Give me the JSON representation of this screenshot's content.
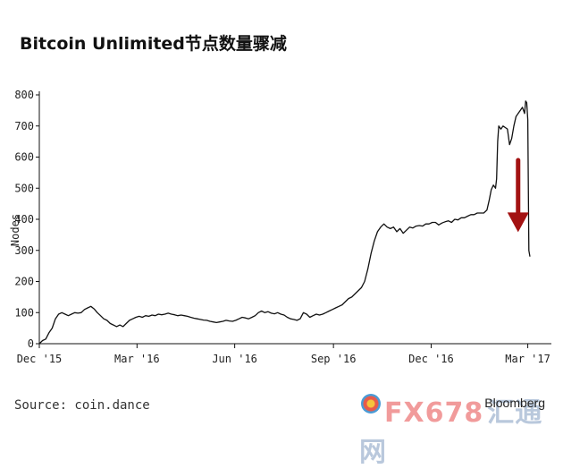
{
  "title": "Bitcoin Unlimited节点数量骤减",
  "source": "Source: coin.dance",
  "brand": "Bloomberg",
  "watermark": {
    "main": "FX678",
    "sub": "汇通网"
  },
  "chart_data": {
    "type": "line",
    "title": "Bitcoin Unlimited节点数量骤减",
    "xlabel": "",
    "ylabel": "Nodes",
    "ylim": [
      0,
      800
    ],
    "yticks": [
      0,
      100,
      200,
      300,
      400,
      500,
      600,
      700,
      800
    ],
    "xlim": [
      0,
      472
    ],
    "xticks": [
      {
        "pos": 0,
        "label": "Dec '15"
      },
      {
        "pos": 91,
        "label": "Mar '16"
      },
      {
        "pos": 182,
        "label": "Jun '16"
      },
      {
        "pos": 274,
        "label": "Sep '16"
      },
      {
        "pos": 365,
        "label": "Dec '16"
      },
      {
        "pos": 455,
        "label": "Mar '17"
      }
    ],
    "grid": false,
    "legend": "none",
    "annotation": {
      "type": "arrow",
      "color": "#a31212",
      "x_day": 446,
      "from_y": 590,
      "to_y": 370
    },
    "series": [
      {
        "color": "#111111",
        "points": [
          [
            0,
            0
          ],
          [
            3,
            10
          ],
          [
            6,
            15
          ],
          [
            9,
            35
          ],
          [
            12,
            50
          ],
          [
            15,
            80
          ],
          [
            18,
            95
          ],
          [
            21,
            100
          ],
          [
            24,
            95
          ],
          [
            27,
            90
          ],
          [
            30,
            95
          ],
          [
            33,
            100
          ],
          [
            36,
            98
          ],
          [
            39,
            100
          ],
          [
            42,
            110
          ],
          [
            45,
            115
          ],
          [
            48,
            120
          ],
          [
            51,
            112
          ],
          [
            54,
            100
          ],
          [
            57,
            90
          ],
          [
            60,
            80
          ],
          [
            63,
            75
          ],
          [
            66,
            65
          ],
          [
            69,
            60
          ],
          [
            72,
            55
          ],
          [
            75,
            60
          ],
          [
            78,
            55
          ],
          [
            81,
            65
          ],
          [
            84,
            75
          ],
          [
            87,
            80
          ],
          [
            90,
            85
          ],
          [
            93,
            88
          ],
          [
            96,
            85
          ],
          [
            99,
            90
          ],
          [
            102,
            88
          ],
          [
            105,
            92
          ],
          [
            108,
            90
          ],
          [
            111,
            95
          ],
          [
            114,
            93
          ],
          [
            117,
            95
          ],
          [
            120,
            98
          ],
          [
            123,
            95
          ],
          [
            126,
            93
          ],
          [
            129,
            90
          ],
          [
            132,
            92
          ],
          [
            135,
            90
          ],
          [
            138,
            88
          ],
          [
            141,
            85
          ],
          [
            144,
            82
          ],
          [
            147,
            80
          ],
          [
            150,
            78
          ],
          [
            153,
            76
          ],
          [
            156,
            75
          ],
          [
            159,
            72
          ],
          [
            162,
            70
          ],
          [
            165,
            68
          ],
          [
            168,
            70
          ],
          [
            171,
            72
          ],
          [
            174,
            75
          ],
          [
            177,
            73
          ],
          [
            180,
            72
          ],
          [
            183,
            75
          ],
          [
            186,
            80
          ],
          [
            189,
            85
          ],
          [
            192,
            83
          ],
          [
            195,
            80
          ],
          [
            198,
            85
          ],
          [
            201,
            90
          ],
          [
            204,
            100
          ],
          [
            207,
            105
          ],
          [
            210,
            100
          ],
          [
            213,
            103
          ],
          [
            216,
            98
          ],
          [
            219,
            96
          ],
          [
            222,
            100
          ],
          [
            225,
            95
          ],
          [
            228,
            92
          ],
          [
            231,
            85
          ],
          [
            234,
            80
          ],
          [
            237,
            78
          ],
          [
            240,
            75
          ],
          [
            243,
            80
          ],
          [
            246,
            100
          ],
          [
            249,
            95
          ],
          [
            252,
            85
          ],
          [
            255,
            90
          ],
          [
            258,
            95
          ],
          [
            261,
            92
          ],
          [
            264,
            95
          ],
          [
            267,
            100
          ],
          [
            270,
            105
          ],
          [
            273,
            110
          ],
          [
            276,
            115
          ],
          [
            279,
            120
          ],
          [
            282,
            125
          ],
          [
            285,
            135
          ],
          [
            288,
            145
          ],
          [
            291,
            150
          ],
          [
            294,
            160
          ],
          [
            297,
            170
          ],
          [
            300,
            180
          ],
          [
            303,
            200
          ],
          [
            306,
            240
          ],
          [
            309,
            290
          ],
          [
            312,
            330
          ],
          [
            315,
            360
          ],
          [
            318,
            375
          ],
          [
            321,
            385
          ],
          [
            324,
            375
          ],
          [
            327,
            370
          ],
          [
            330,
            375
          ],
          [
            333,
            360
          ],
          [
            336,
            370
          ],
          [
            339,
            355
          ],
          [
            342,
            365
          ],
          [
            345,
            375
          ],
          [
            348,
            372
          ],
          [
            351,
            378
          ],
          [
            354,
            380
          ],
          [
            357,
            378
          ],
          [
            360,
            385
          ],
          [
            363,
            385
          ],
          [
            366,
            390
          ],
          [
            369,
            390
          ],
          [
            372,
            382
          ],
          [
            375,
            388
          ],
          [
            378,
            392
          ],
          [
            381,
            395
          ],
          [
            384,
            390
          ],
          [
            387,
            400
          ],
          [
            390,
            398
          ],
          [
            393,
            405
          ],
          [
            396,
            405
          ],
          [
            399,
            410
          ],
          [
            402,
            415
          ],
          [
            405,
            415
          ],
          [
            408,
            420
          ],
          [
            411,
            420
          ],
          [
            414,
            420
          ],
          [
            417,
            430
          ],
          [
            419,
            460
          ],
          [
            421,
            495
          ],
          [
            423,
            510
          ],
          [
            425,
            500
          ],
          [
            426,
            530
          ],
          [
            427,
            650
          ],
          [
            428,
            700
          ],
          [
            430,
            690
          ],
          [
            432,
            700
          ],
          [
            434,
            695
          ],
          [
            436,
            690
          ],
          [
            438,
            640
          ],
          [
            440,
            660
          ],
          [
            442,
            700
          ],
          [
            444,
            730
          ],
          [
            446,
            740
          ],
          [
            448,
            750
          ],
          [
            450,
            760
          ],
          [
            452,
            740
          ],
          [
            453,
            780
          ],
          [
            454,
            775
          ],
          [
            455,
            720
          ],
          [
            456,
            300
          ],
          [
            457,
            280
          ]
        ]
      }
    ]
  }
}
